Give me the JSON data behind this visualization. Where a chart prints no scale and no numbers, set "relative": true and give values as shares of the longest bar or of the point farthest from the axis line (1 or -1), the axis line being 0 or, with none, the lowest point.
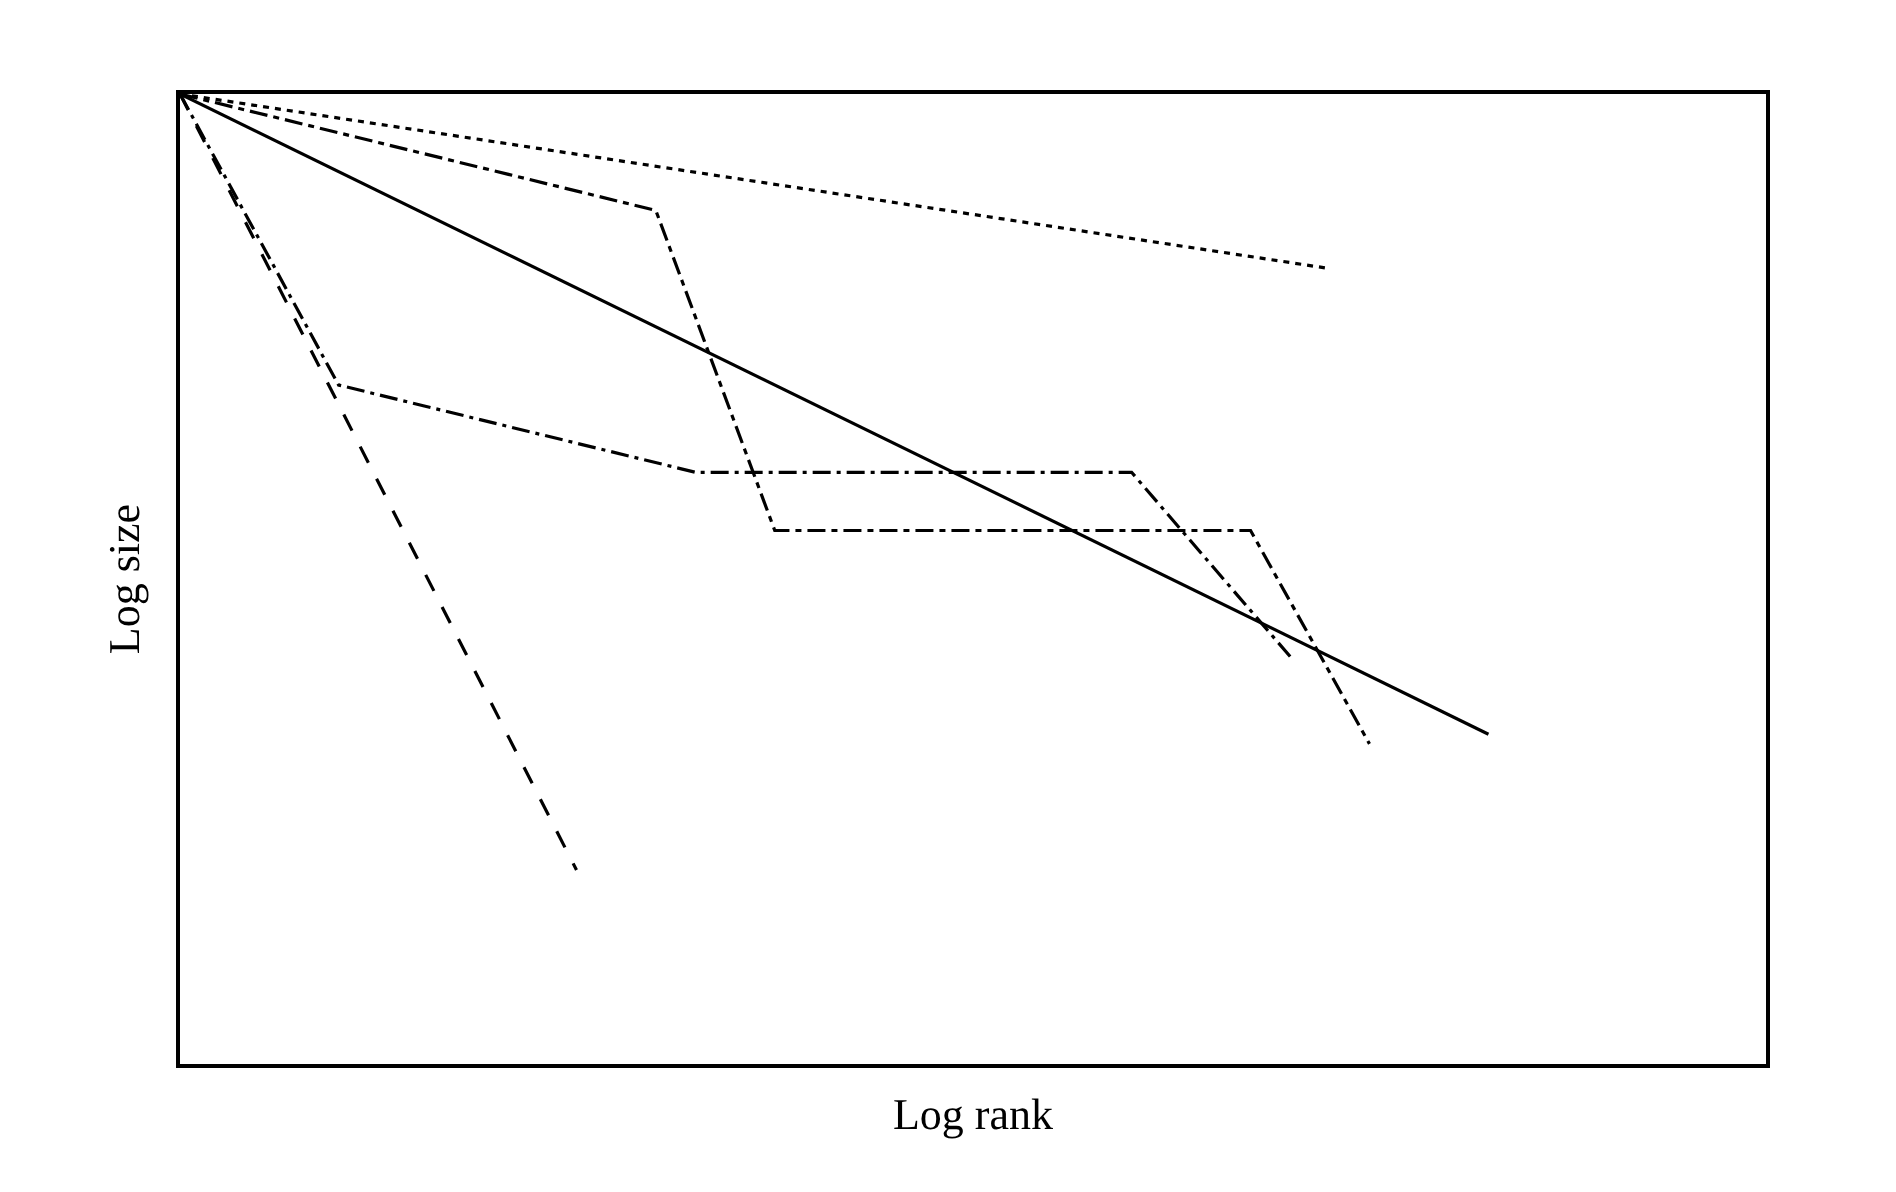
{
  "chart_data": {
    "type": "line",
    "relative": true,
    "xlabel": "Log rank",
    "ylabel": "Log size",
    "marker": "none",
    "categories": [
      null,
      null,
      null,
      null,
      null,
      null,
      null,
      null,
      null,
      null,
      null,
      null,
      null,
      null,
      null,
      null,
      null,
      null,
      null,
      null,
      null,
      null,
      null,
      null,
      null,
      null,
      null,
      null,
      null,
      null,
      null,
      null,
      null,
      null,
      null,
      null,
      null,
      null,
      null,
      null,
      null
    ],
    "series": [
      {
        "color": "#000000",
        "line_style": "solid",
        "values": [
          1,
          null,
          null,
          null,
          null,
          null,
          null,
          null,
          null,
          null,
          null,
          null,
          null,
          null,
          null,
          null,
          null,
          null,
          null,
          null,
          null,
          null,
          null,
          null,
          null,
          null,
          null,
          null,
          null,
          null,
          null,
          null,
          null,
          0.34,
          null,
          null,
          null,
          null,
          null,
          null,
          null
        ]
      },
      {
        "color": "#000000",
        "line_style": "dotted",
        "values": [
          1,
          null,
          null,
          null,
          null,
          null,
          null,
          null,
          null,
          null,
          null,
          null,
          null,
          null,
          null,
          null,
          null,
          null,
          null,
          null,
          null,
          null,
          null,
          null,
          null,
          null,
          null,
          null,
          null,
          0.82,
          null,
          null,
          null,
          null,
          null,
          null,
          null,
          null,
          null,
          null,
          null
        ]
      },
      {
        "color": "#000000",
        "line_style": "dashed",
        "values": [
          1,
          null,
          null,
          null,
          null,
          null,
          null,
          null,
          null,
          null,
          0.2,
          null,
          null,
          null,
          null,
          null,
          null,
          null,
          null,
          null,
          null,
          null,
          null,
          null,
          null,
          null,
          null,
          null,
          null,
          null,
          null,
          null,
          null,
          null,
          null,
          null,
          null,
          null,
          null,
          null,
          null
        ]
      },
      {
        "color": "#000000",
        "line_style": "longdashdot",
        "values": [
          1,
          null,
          null,
          null,
          0.7,
          null,
          null,
          null,
          null,
          null,
          null,
          null,
          null,
          0.61,
          null,
          null,
          null,
          null,
          null,
          null,
          null,
          null,
          null,
          null,
          0.61,
          null,
          null,
          null,
          0.42,
          null,
          null,
          null,
          null,
          null,
          null,
          null,
          null,
          null,
          null,
          null,
          null
        ]
      },
      {
        "color": "#000000",
        "line_style": "dashdot",
        "values": [
          1,
          null,
          null,
          null,
          null,
          null,
          null,
          null,
          null,
          null,
          null,
          null,
          0.88,
          null,
          null,
          0.55,
          null,
          null,
          null,
          null,
          null,
          null,
          null,
          null,
          null,
          null,
          null,
          0.55,
          null,
          null,
          0.33,
          null,
          null,
          null,
          null,
          null,
          null,
          null,
          null,
          null,
          null
        ]
      }
    ]
  }
}
